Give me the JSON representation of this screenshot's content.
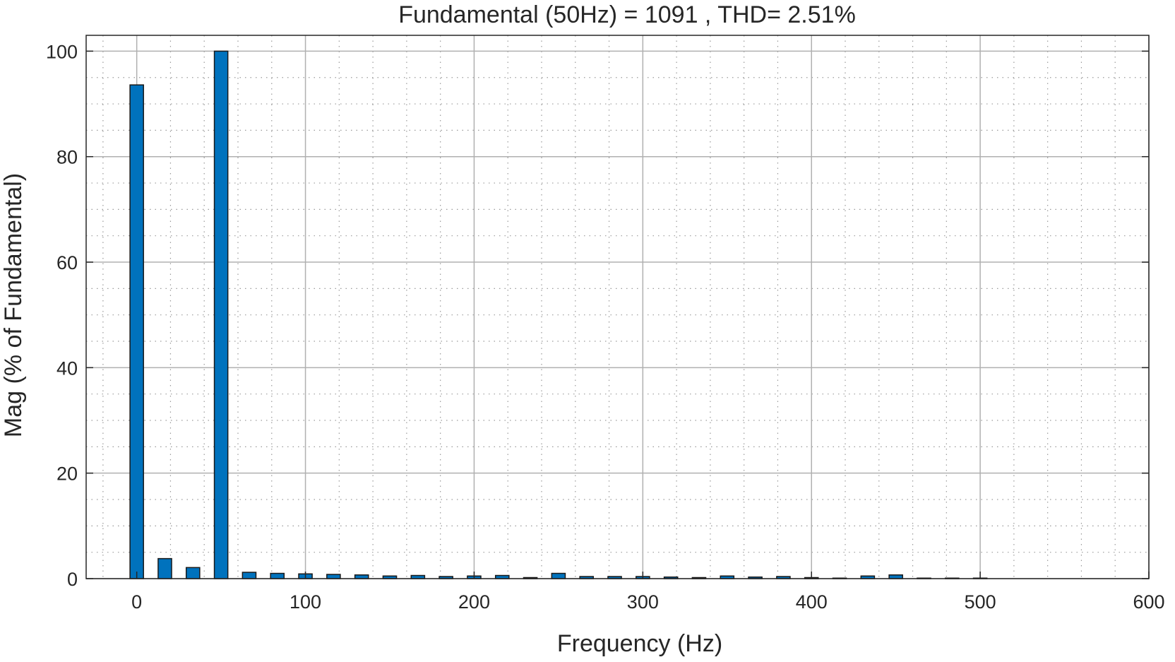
{
  "chart_data": {
    "type": "bar",
    "title": "Fundamental (50Hz) = 1091 , THD= 2.51%",
    "xlabel": "Frequency (Hz)",
    "ylabel": "Mag (% of Fundamental)",
    "xlim": [
      -30,
      600
    ],
    "ylim": [
      0,
      103
    ],
    "xticks": [
      0,
      100,
      200,
      300,
      400,
      500,
      600
    ],
    "yticks": [
      0,
      20,
      40,
      60,
      80,
      100
    ],
    "grid": true,
    "minor_grid": true,
    "bar_color": "#0072BD",
    "x": [
      0,
      16.67,
      33.33,
      50,
      66.67,
      83.33,
      100,
      116.67,
      133.33,
      150,
      166.67,
      183.33,
      200,
      216.67,
      233.33,
      250,
      266.67,
      283.33,
      300,
      316.67,
      333.33,
      350,
      366.67,
      383.33,
      400,
      416.67,
      433.33,
      450,
      466.67,
      483.33,
      500
    ],
    "values": [
      93.6,
      3.8,
      2.1,
      100,
      1.2,
      1.0,
      0.9,
      0.8,
      0.7,
      0.5,
      0.6,
      0.4,
      0.5,
      0.6,
      0.2,
      1.0,
      0.4,
      0.4,
      0.4,
      0.3,
      0.2,
      0.5,
      0.3,
      0.4,
      0.2,
      0.1,
      0.5,
      0.7,
      0.1,
      0.1,
      0.1
    ]
  }
}
